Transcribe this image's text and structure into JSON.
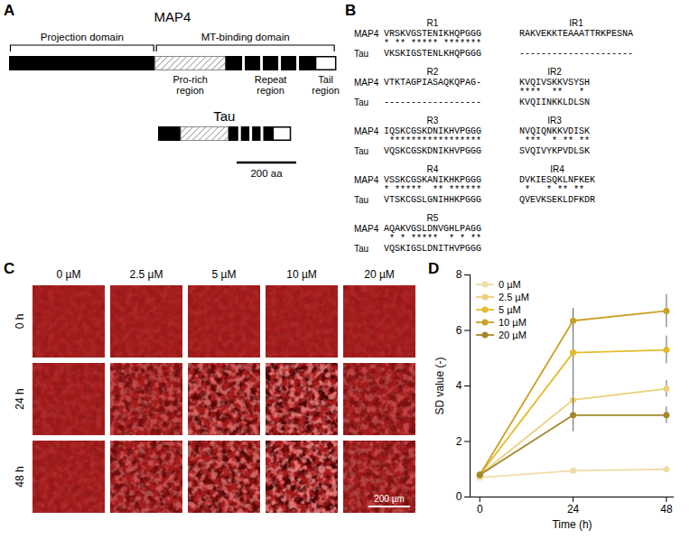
{
  "panels": {
    "A": {
      "letter": "A",
      "proteins": [
        {
          "name": "MAP4",
          "segments_aa": [
            490,
            236,
            303,
            67
          ]
        },
        {
          "name": "Tau",
          "segments_aa": [
            76,
            160,
            150,
            58
          ]
        }
      ],
      "domains": [
        "Projection domain",
        "MT-binding domain"
      ],
      "regions": [
        "Pro-rich region",
        "Repeat region",
        "Tail region"
      ],
      "scale_bar": {
        "label": "200 aa",
        "length_aa": 200
      }
    },
    "B": {
      "letter": "B",
      "names": [
        "MAP4",
        "Tau"
      ],
      "repeats": [
        {
          "label": "R1",
          "map4": "VRSKVGSTENIKHQPGGG",
          "match": "* ** ***** *******",
          "tau": "VKSKIGSTENLKHQPGGG"
        },
        {
          "label": "R2",
          "map4": "VTKTAGPIASAQKQPAG-",
          "tau": "------------------"
        },
        {
          "label": "R3",
          "map4": "IQSKCGSKDNIKHVPGGG",
          "match": " *****************",
          "tau": "VQSKCGSKDNIKHVPGGG"
        },
        {
          "label": "R4",
          "map4": "VSSKCGSKANIKHKPGGG",
          "match": "* *****  ** ******",
          "tau": "VTSKCGSLGNIHHKPGGG"
        },
        {
          "label": "R5",
          "map4": "AQAKVGSLDNVGHLPAGG",
          "match": " * * *****  * * **",
          "tau": "VQSKIGSLDNITHVPGGG"
        }
      ],
      "inter_repeats": [
        {
          "label": "IR1",
          "map4": "RAKVEKKTEAAATTRKPESNA",
          "tau": "---------------------"
        },
        {
          "label": "IR2",
          "map4": "KVQIVSKKVSYSH",
          "match": "****  **   * ",
          "tau": "KVQIINKKLDLSN"
        },
        {
          "label": "IR3",
          "map4": "NVQIQNKKVDISK",
          "match": " ***  * ** **",
          "tau": "SVQIVYKPVDLSK"
        },
        {
          "label": "IR4",
          "map4": "DVKIESQKLNFKEK",
          "match": " *   * ** **  ",
          "tau": "QVEVKSEKLDFKDR"
        }
      ]
    },
    "C": {
      "letter": "C",
      "concentrations": [
        "0 µM",
        "2.5 µM",
        "5 µM",
        "10 µM",
        "20 µM"
      ],
      "times": [
        "0 h",
        "24 h",
        "48 h"
      ],
      "scale_bar": "200 µm"
    },
    "D": {
      "letter": "D"
    }
  },
  "chart_data": {
    "type": "line",
    "x_label": "Time (h)",
    "y_label": "SD value (-)",
    "x": [
      0,
      24,
      48
    ],
    "xlim": [
      -2.5,
      50
    ],
    "xticks": [
      0,
      24,
      48
    ],
    "ylim": [
      0,
      8
    ],
    "yticks": [
      0,
      2,
      4,
      6,
      8
    ],
    "legend": "upper left",
    "series": [
      {
        "name": "0 µM",
        "color": "#f0dca6",
        "values": [
          0.7,
          0.95,
          1.0
        ],
        "error": [
          0.03,
          0.05,
          0.05
        ]
      },
      {
        "name": "2.5 µM",
        "color": "#ecd07a",
        "values": [
          0.8,
          3.5,
          3.9
        ],
        "error": [
          0.05,
          0.25,
          0.3
        ]
      },
      {
        "name": "5 µM",
        "color": "#e3bc2c",
        "values": [
          0.8,
          5.2,
          5.3
        ],
        "error": [
          0.05,
          1.5,
          0.5
        ]
      },
      {
        "name": "10 µM",
        "color": "#caa126",
        "values": [
          0.8,
          6.35,
          6.7
        ],
        "error": [
          0.05,
          0.45,
          0.6
        ]
      },
      {
        "name": "20 µM",
        "color": "#a4872c",
        "values": [
          0.8,
          2.95,
          2.95
        ],
        "error": [
          0.05,
          0.6,
          0.3
        ]
      }
    ]
  }
}
